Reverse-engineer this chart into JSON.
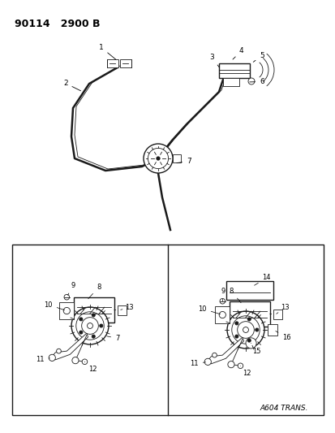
{
  "background_color": "#ffffff",
  "header_text": "90114   2900 B",
  "footer_text": "A604 TRANS.",
  "header_fontsize": 9,
  "footer_fontsize": 6.5,
  "line_color": "#1a1a1a",
  "thin_lw": 0.6,
  "med_lw": 1.0,
  "thick_lw": 1.8
}
